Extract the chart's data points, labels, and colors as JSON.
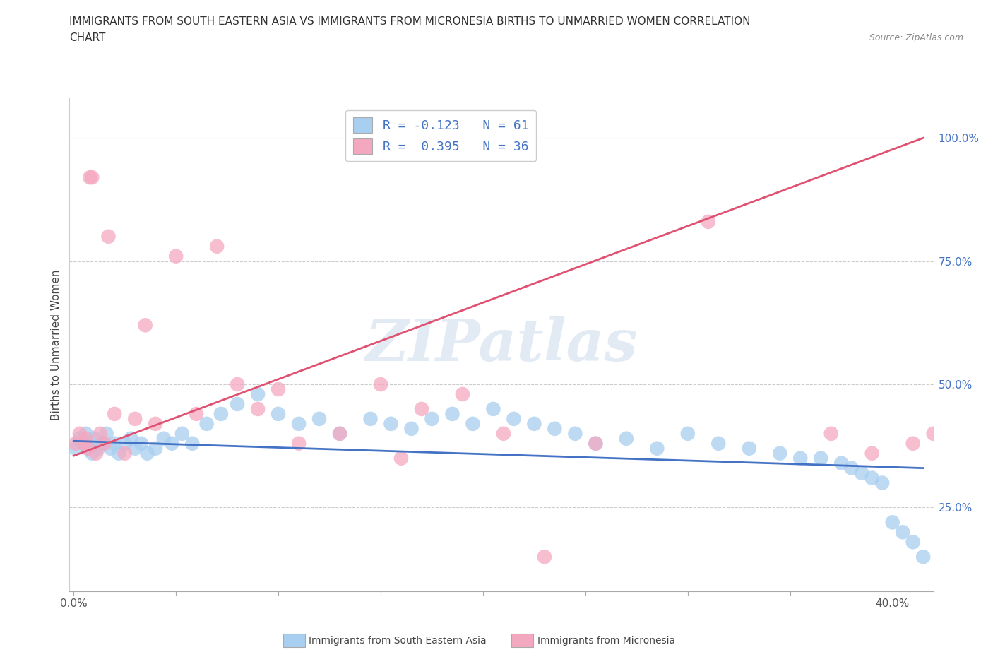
{
  "title_line1": "IMMIGRANTS FROM SOUTH EASTERN ASIA VS IMMIGRANTS FROM MICRONESIA BIRTHS TO UNMARRIED WOMEN CORRELATION",
  "title_line2": "CHART",
  "source_text": "Source: ZipAtlas.com",
  "ylabel": "Births to Unmarried Women",
  "color_blue": "#A8CEF0",
  "color_pink": "#F4A8C0",
  "line_color_blue": "#4472C4",
  "line_color_pink": "#E05070",
  "watermark_text": "ZIPatlas",
  "legend_label_blue": "Immigrants from South Eastern Asia",
  "legend_label_pink": "Immigrants from Micronesia",
  "xlim": [
    -0.002,
    0.42
  ],
  "ylim": [
    0.08,
    1.08
  ],
  "ytick_vals": [
    0.25,
    0.5,
    0.75,
    1.0
  ],
  "ytick_labels": [
    "25.0%",
    "50.0%",
    "75.0%",
    "100.0%"
  ],
  "xtick_positions": [
    0.0,
    0.05,
    0.1,
    0.15,
    0.2,
    0.25,
    0.3,
    0.35,
    0.4
  ],
  "blue_x": [
    0.001,
    0.003,
    0.005,
    0.006,
    0.007,
    0.008,
    0.009,
    0.01,
    0.012,
    0.014,
    0.016,
    0.018,
    0.02,
    0.022,
    0.025,
    0.028,
    0.03,
    0.033,
    0.036,
    0.04,
    0.044,
    0.048,
    0.053,
    0.058,
    0.065,
    0.072,
    0.08,
    0.09,
    0.1,
    0.11,
    0.12,
    0.13,
    0.145,
    0.155,
    0.165,
    0.175,
    0.185,
    0.195,
    0.205,
    0.215,
    0.225,
    0.235,
    0.245,
    0.255,
    0.27,
    0.285,
    0.3,
    0.315,
    0.33,
    0.345,
    0.355,
    0.365,
    0.375,
    0.38,
    0.385,
    0.39,
    0.395,
    0.4,
    0.405,
    0.41,
    0.415
  ],
  "blue_y": [
    0.37,
    0.39,
    0.38,
    0.4,
    0.37,
    0.38,
    0.36,
    0.39,
    0.37,
    0.38,
    0.4,
    0.37,
    0.38,
    0.36,
    0.38,
    0.39,
    0.37,
    0.38,
    0.36,
    0.37,
    0.39,
    0.38,
    0.4,
    0.38,
    0.42,
    0.44,
    0.46,
    0.48,
    0.44,
    0.42,
    0.43,
    0.4,
    0.43,
    0.42,
    0.41,
    0.43,
    0.44,
    0.42,
    0.45,
    0.43,
    0.42,
    0.41,
    0.4,
    0.38,
    0.39,
    0.37,
    0.4,
    0.38,
    0.37,
    0.36,
    0.35,
    0.35,
    0.34,
    0.33,
    0.32,
    0.31,
    0.3,
    0.22,
    0.2,
    0.18,
    0.15
  ],
  "pink_x": [
    0.001,
    0.003,
    0.005,
    0.006,
    0.007,
    0.008,
    0.009,
    0.011,
    0.013,
    0.015,
    0.017,
    0.02,
    0.025,
    0.03,
    0.035,
    0.04,
    0.05,
    0.06,
    0.07,
    0.08,
    0.09,
    0.1,
    0.11,
    0.13,
    0.15,
    0.16,
    0.17,
    0.19,
    0.21,
    0.23,
    0.255,
    0.31,
    0.37,
    0.39,
    0.41,
    0.42
  ],
  "pink_y": [
    0.38,
    0.4,
    0.38,
    0.39,
    0.37,
    0.92,
    0.92,
    0.36,
    0.4,
    0.38,
    0.8,
    0.44,
    0.36,
    0.43,
    0.62,
    0.42,
    0.76,
    0.44,
    0.78,
    0.5,
    0.45,
    0.49,
    0.38,
    0.4,
    0.5,
    0.35,
    0.45,
    0.48,
    0.4,
    0.15,
    0.38,
    0.83,
    0.4,
    0.36,
    0.38,
    0.4
  ],
  "blue_line_x0": 0.0,
  "blue_line_y0": 0.385,
  "blue_line_x1": 0.415,
  "blue_line_y1": 0.33,
  "pink_line_x0": 0.0,
  "pink_line_y0": 0.355,
  "pink_line_x1": 0.415,
  "pink_line_y1": 1.0
}
